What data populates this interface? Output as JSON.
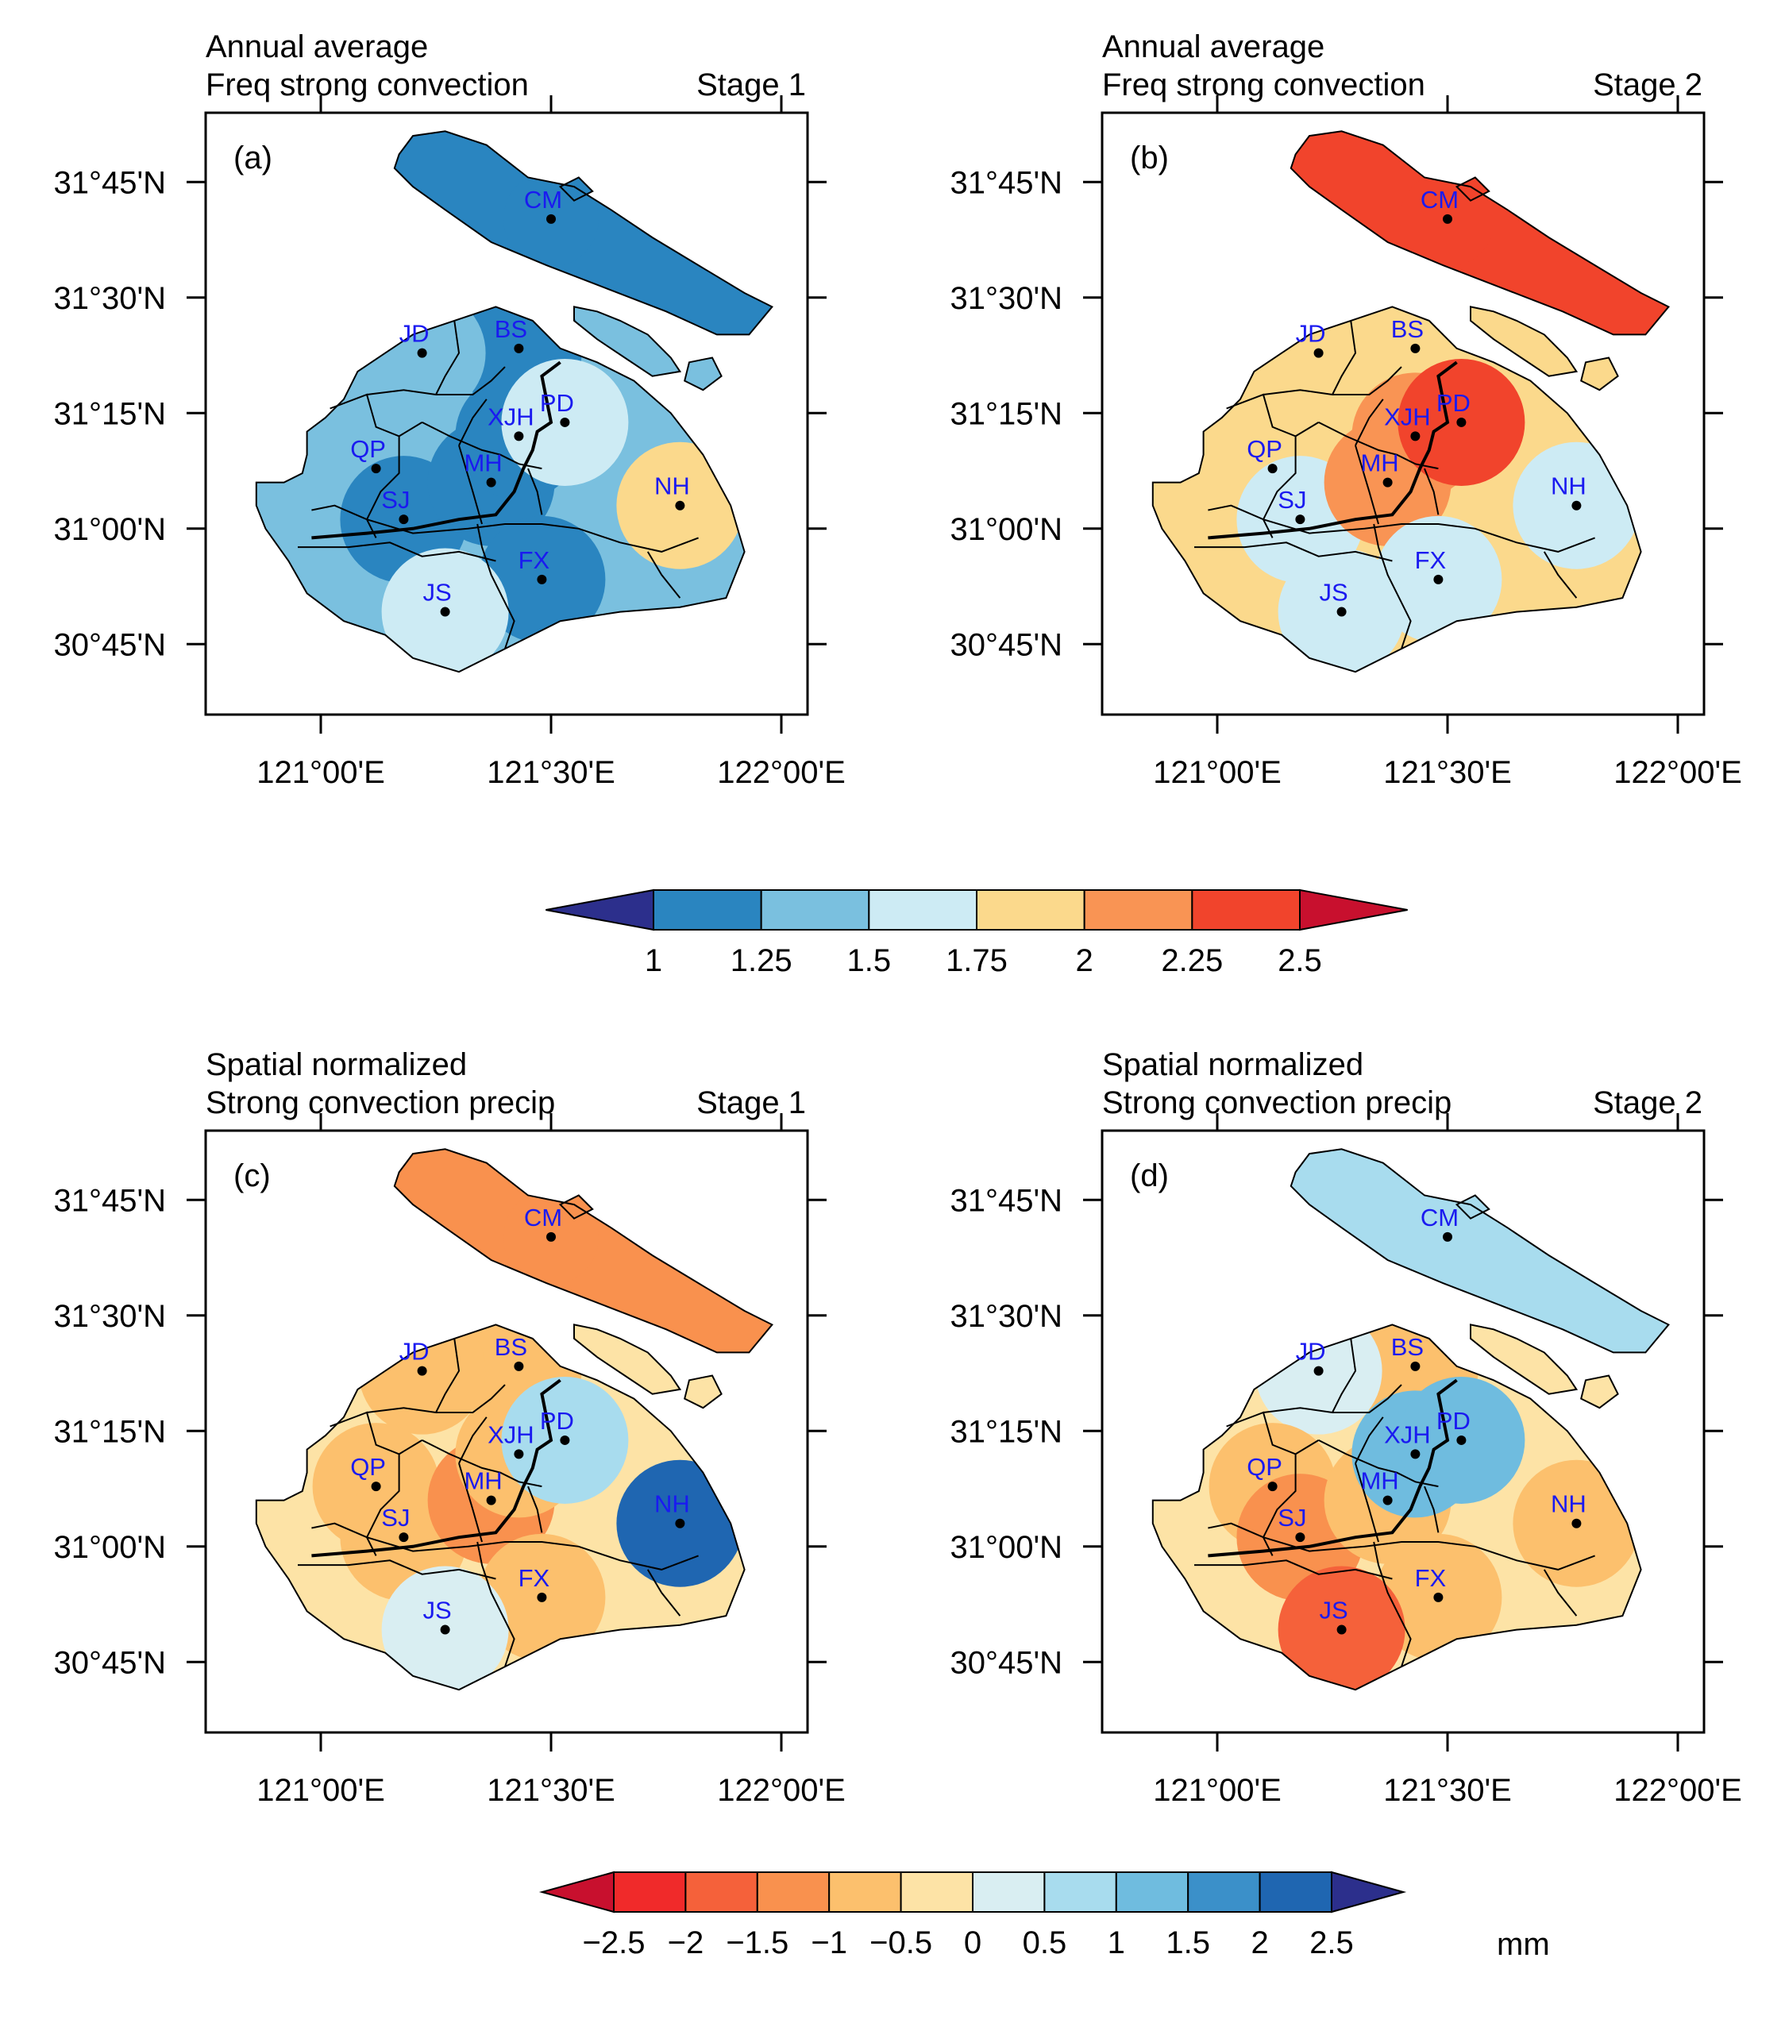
{
  "panels": [
    {
      "id": "a",
      "label": "(a)",
      "title_line1": "Annual average",
      "title_line2": "Freq strong convection",
      "stage": "Stage 1",
      "field": {
        "CM": 1.1,
        "BS": 1.1,
        "JD": 1.35,
        "QP": 1.35,
        "SJ": 1.1,
        "MH": 1.15,
        "XJH": 1.15,
        "PD": 1.6,
        "NH": 1.9,
        "FX": 1.2,
        "JS": 1.55
      }
    },
    {
      "id": "b",
      "label": "(b)",
      "title_line1": "Annual average",
      "title_line2": "Freq strong convection",
      "stage": "Stage 2",
      "field": {
        "CM": 2.3,
        "BS": 1.9,
        "JD": 1.9,
        "QP": 1.9,
        "SJ": 1.6,
        "MH": 2.1,
        "XJH": 2.2,
        "PD": 2.35,
        "NH": 1.6,
        "FX": 1.6,
        "JS": 1.6
      }
    },
    {
      "id": "c",
      "label": "(c)",
      "title_line1": "Spatial normalized",
      "title_line2": "Strong convection precip",
      "stage": "Stage 1",
      "field": {
        "CM": -1.4,
        "BS": -0.9,
        "JD": -0.8,
        "QP": -0.7,
        "SJ": -0.8,
        "MH": -1.1,
        "XJH": -0.9,
        "PD": 0.7,
        "NH": 2.2,
        "FX": -0.8,
        "JS": 0.3
      }
    },
    {
      "id": "d",
      "label": "(d)",
      "title_line1": "Spatial normalized",
      "title_line2": "Strong convection precip",
      "stage": "Stage 2",
      "field": {
        "CM": 0.9,
        "BS": -0.6,
        "JD": 0.3,
        "QP": -0.7,
        "SJ": -1.1,
        "MH": -0.6,
        "XJH": 1.0,
        "PD": 1.3,
        "NH": -0.8,
        "FX": -1.0,
        "JS": -1.6
      }
    }
  ],
  "stations": [
    {
      "code": "CM",
      "lon": 121.5,
      "lat": 31.67
    },
    {
      "code": "BS",
      "lon": 121.43,
      "lat": 31.39
    },
    {
      "code": "JD",
      "lon": 121.22,
      "lat": 31.38
    },
    {
      "code": "QP",
      "lon": 121.12,
      "lat": 31.13
    },
    {
      "code": "SJ",
      "lon": 121.18,
      "lat": 31.02
    },
    {
      "code": "MH",
      "lon": 121.37,
      "lat": 31.1
    },
    {
      "code": "XJH",
      "lon": 121.43,
      "lat": 31.2
    },
    {
      "code": "PD",
      "lon": 121.53,
      "lat": 31.23
    },
    {
      "code": "NH",
      "lon": 121.78,
      "lat": 31.05
    },
    {
      "code": "FX",
      "lon": 121.48,
      "lat": 30.89
    },
    {
      "code": "JS",
      "lon": 121.27,
      "lat": 30.82
    }
  ],
  "axes": {
    "x_ticks": [
      "121°00'E",
      "121°30'E",
      "122°00'E"
    ],
    "y_ticks": [
      "31°45'N",
      "31°30'N",
      "31°15'N",
      "31°00'N",
      "30°45'N"
    ],
    "lon_range": [
      120.75,
      122.05
    ],
    "lat_range": [
      30.63,
      31.9
    ]
  },
  "colorbar1": {
    "labels": [
      "1",
      "1.25",
      "1.5",
      "1.75",
      "2",
      "2.25",
      "2.5"
    ],
    "levels": [
      1,
      1.25,
      1.5,
      1.75,
      2,
      2.25,
      2.5
    ],
    "colors": [
      "#2c2f8c",
      "#2a85c0",
      "#7ac0df",
      "#cdebf4",
      "#fbd98c",
      "#f99454",
      "#f1442c",
      "#c8102e"
    ]
  },
  "colorbar2": {
    "labels": [
      "−2.5",
      "−2",
      "−1.5",
      "−1",
      "−0.5",
      "0",
      "0.5",
      "1",
      "1.5",
      "2",
      "2.5"
    ],
    "levels": [
      -2.5,
      -2,
      -1.5,
      -1,
      -0.5,
      0,
      0.5,
      1,
      1.5,
      2,
      2.5
    ],
    "colors": [
      "#c8102e",
      "#f02a2a",
      "#f5613a",
      "#f9914e",
      "#fcc06d",
      "#fde3a6",
      "#d9eef2",
      "#a8dcee",
      "#6fbcdf",
      "#3b90c9",
      "#1f66b1",
      "#2c2f8c"
    ],
    "unit": "mm"
  }
}
